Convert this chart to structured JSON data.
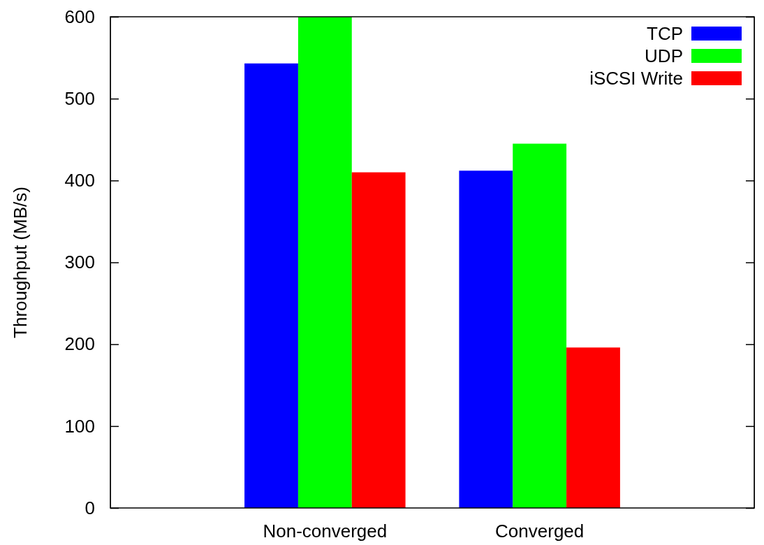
{
  "chart_data": {
    "type": "bar",
    "ylabel": "Throughput (MB/s)",
    "categories": [
      "Non-converged",
      "Converged"
    ],
    "series": [
      {
        "name": "TCP",
        "color": "#0000ff",
        "values": [
          543,
          412
        ]
      },
      {
        "name": "UDP",
        "color": "#00ff00",
        "values": [
          600,
          445
        ]
      },
      {
        "name": "iSCSI Write",
        "color": "#ff0000",
        "values": [
          410,
          196
        ]
      }
    ],
    "ylim": [
      0,
      600
    ],
    "yticks": [
      0,
      100,
      200,
      300,
      400,
      500,
      600
    ],
    "grid": false,
    "legend": "top right"
  }
}
